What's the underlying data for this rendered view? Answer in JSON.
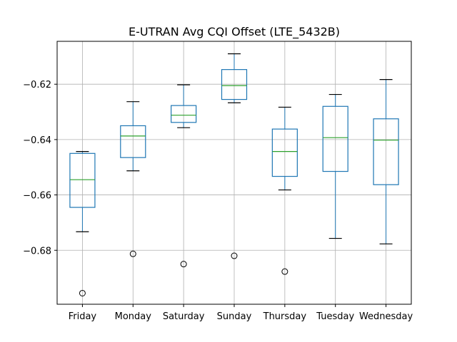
{
  "chart_data": {
    "type": "box",
    "title": "E-UTRAN Avg CQI Offset (LTE_5432B)",
    "xlabel": "",
    "ylabel": "",
    "categories": [
      "Friday",
      "Monday",
      "Saturday",
      "Sunday",
      "Thursday",
      "Tuesday",
      "Wednesday"
    ],
    "boxes": [
      {
        "category": "Friday",
        "whisker_low": -0.6733,
        "q1": -0.6645,
        "median": -0.6545,
        "q3": -0.645,
        "whisker_high": -0.6443,
        "outliers": [
          -0.6955
        ]
      },
      {
        "category": "Monday",
        "whisker_low": -0.6513,
        "q1": -0.6465,
        "median": -0.6387,
        "q3": -0.635,
        "whisker_high": -0.6263,
        "outliers": [
          -0.6813
        ]
      },
      {
        "category": "Saturday",
        "whisker_low": -0.6357,
        "q1": -0.6338,
        "median": -0.6312,
        "q3": -0.6277,
        "whisker_high": -0.6202,
        "outliers": [
          -0.685
        ]
      },
      {
        "category": "Sunday",
        "whisker_low": -0.6267,
        "q1": -0.6255,
        "median": -0.6205,
        "q3": -0.6147,
        "whisker_high": -0.609,
        "outliers": [
          -0.682
        ]
      },
      {
        "category": "Thursday",
        "whisker_low": -0.6582,
        "q1": -0.6533,
        "median": -0.6443,
        "q3": -0.6362,
        "whisker_high": -0.6283,
        "outliers": [
          -0.6877
        ]
      },
      {
        "category": "Tuesday",
        "whisker_low": -0.6757,
        "q1": -0.6515,
        "median": -0.6393,
        "q3": -0.628,
        "whisker_high": -0.6237,
        "outliers": []
      },
      {
        "category": "Wednesday",
        "whisker_low": -0.6777,
        "q1": -0.6563,
        "median": -0.6402,
        "q3": -0.6325,
        "whisker_high": -0.6183,
        "outliers": []
      }
    ],
    "yticks": [
      -0.68,
      -0.66,
      -0.64,
      -0.62
    ],
    "ytick_labels": [
      "−0.68",
      "−0.66",
      "−0.64",
      "−0.62"
    ],
    "ylim": [
      -0.6995,
      -0.6045
    ],
    "grid": true,
    "colors": {
      "box": "#1f77b4",
      "median": "#2ca02c",
      "whisker_cap": "#000000",
      "grid": "#b0b0b0",
      "outlier": "#000000"
    }
  }
}
